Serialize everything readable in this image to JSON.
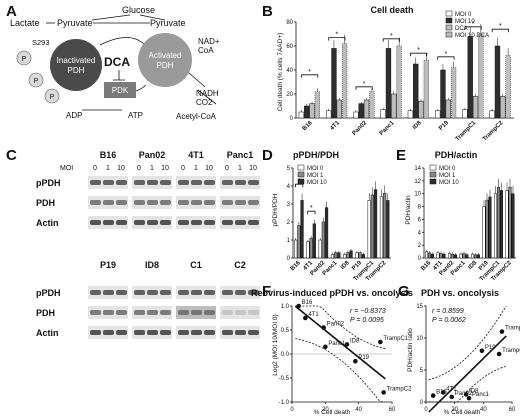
{
  "panels": {
    "A": {
      "letter": "A",
      "labels": {
        "glucose": "Glucose",
        "pyruvate_left": "Pyruvate",
        "pyruvate_right": "Pyruvate",
        "lactate": "Lactate",
        "inactivated": "Inactivated",
        "activated": "Activated",
        "pdh_left": "PDH",
        "pdh_right": "PDH",
        "dca": "DCA",
        "pdk": "PDK",
        "s293": "S293",
        "phospho": "P",
        "nad": "NAD+",
        "coa": "CoA",
        "nadh": "NADH",
        "co2": "CO2",
        "adp": "ADP",
        "atp": "ATP",
        "acetyl_coa": "Acetyl-CoA"
      }
    },
    "B": {
      "letter": "B",
      "chart_data": {
        "type": "bar",
        "title": "Cell death",
        "ylabel": "Cell death (% cells 7AAD+)",
        "ylim": [
          0,
          80
        ],
        "yticks": [
          0,
          20,
          40,
          60,
          80
        ],
        "categories": [
          "B16",
          "4T1",
          "Pan02",
          "Panc1",
          "ID8",
          "P19",
          "TrampC1",
          "TrampC2"
        ],
        "series": [
          {
            "name": "MOI 0",
            "values": [
              5,
              6,
              5,
              7,
              6,
              6,
              7,
              6
            ]
          },
          {
            "name": "MOI 10",
            "values": [
              10,
              58,
              12,
              58,
              45,
              40,
              68,
              60
            ]
          },
          {
            "name": "DCA",
            "values": [
              12,
              15,
              15,
              20,
              14,
              15,
              18,
              18
            ]
          },
          {
            "name": "MOI 10 DCA",
            "values": [
              22,
              62,
              22,
              60,
              48,
              42,
              70,
              52
            ]
          }
        ],
        "legend_position": "top-right",
        "significance_marker": "*"
      }
    },
    "C": {
      "letter": "C",
      "moi_label": "MOI",
      "moi_values": [
        "0",
        "1",
        "10"
      ],
      "blocks_top": [
        "B16",
        "Pan02",
        "4T1",
        "Panc1"
      ],
      "blocks_bottom": [
        "P19",
        "ID8",
        "C1",
        "C2"
      ],
      "row_labels": [
        "pPDH",
        "PDH",
        "Actin"
      ]
    },
    "D": {
      "letter": "D",
      "chart_data": {
        "type": "bar",
        "title": "pPDH/PDH",
        "ylabel": "pPDH/PDH",
        "ylim": [
          0,
          5
        ],
        "yticks": [
          0,
          1,
          2,
          3,
          4,
          5
        ],
        "categories": [
          "B16",
          "4T1",
          "Pan02",
          "Panc1",
          "ID8",
          "P19",
          "TrampC1",
          "TrampC2"
        ],
        "series": [
          {
            "name": "MOI 0",
            "values": [
              1.0,
              0.9,
              1.0,
              0.2,
              0.2,
              0.3,
              3.2,
              3.4
            ]
          },
          {
            "name": "MOI 1",
            "values": [
              1.8,
              1.1,
              2.0,
              0.3,
              0.3,
              0.3,
              3.5,
              3.6
            ]
          },
          {
            "name": "MOI 10",
            "values": [
              3.2,
              1.9,
              2.8,
              0.3,
              0.4,
              0.2,
              3.8,
              3.2
            ]
          }
        ],
        "legend_position": "top-left",
        "significance_marker": "*"
      }
    },
    "E": {
      "letter": "E",
      "chart_data": {
        "type": "bar",
        "title": "PDH/actin",
        "ylabel": "PDH/actin",
        "ylim": [
          0,
          14
        ],
        "yticks": [
          0,
          2,
          4,
          6,
          8,
          10,
          12,
          14
        ],
        "categories": [
          "B16",
          "4T1",
          "Pan02",
          "Panc1",
          "ID8",
          "P19",
          "TrampC1",
          "TrampC2"
        ],
        "series": [
          {
            "name": "MOI 0",
            "values": [
              1.0,
              0.8,
              0.7,
              0.6,
              0.6,
              8.0,
              10.0,
              10.5
            ]
          },
          {
            "name": "MOI 1",
            "values": [
              0.8,
              0.7,
              0.6,
              0.7,
              0.5,
              9.0,
              11.0,
              11.0
            ]
          },
          {
            "name": "MOI 10",
            "values": [
              0.6,
              0.6,
              0.5,
              0.5,
              0.5,
              9.5,
              10.5,
              10.0
            ]
          }
        ],
        "legend_position": "top-left"
      }
    },
    "F": {
      "letter": "F",
      "chart_data": {
        "type": "scatter",
        "title": "Reovirus-induced pPDH vs. oncolysis",
        "xlabel": "% Cell death",
        "ylabel": "Log2 (MOI 10/MOI 0)",
        "xlim": [
          0,
          60
        ],
        "ylim": [
          -1.0,
          1.0
        ],
        "xticks": [
          0,
          20,
          40,
          60
        ],
        "yticks": [
          -1.0,
          -0.5,
          0.0,
          0.5,
          1.0
        ],
        "annotation_r": "r = −0.8373",
        "annotation_p": "P = 0.0095",
        "points": [
          {
            "label": "B16",
            "x": 4,
            "y": 1.0
          },
          {
            "label": "4T1",
            "x": 8,
            "y": 0.75
          },
          {
            "label": "Pan02",
            "x": 19,
            "y": 0.55
          },
          {
            "label": "Panc1",
            "x": 20,
            "y": 0.15
          },
          {
            "label": "ID8",
            "x": 33,
            "y": 0.2
          },
          {
            "label": "P19",
            "x": 38,
            "y": -0.15
          },
          {
            "label": "TrampC1",
            "x": 53,
            "y": 0.25
          },
          {
            "label": "TrampC2",
            "x": 55,
            "y": -0.8
          }
        ]
      }
    },
    "G": {
      "letter": "G",
      "chart_data": {
        "type": "scatter",
        "title": "PDH vs. oncolysis",
        "xlabel": "% Cell death",
        "ylabel": "PDH/actin ratio",
        "xlim": [
          0,
          60
        ],
        "ylim": [
          0,
          15
        ],
        "xticks": [
          0,
          20,
          40,
          60
        ],
        "yticks": [
          0,
          5,
          10,
          15
        ],
        "annotation_r": "r = 0.8599",
        "annotation_p": "P = 0.0062",
        "points": [
          {
            "label": "B16",
            "x": 5,
            "y": 1.0
          },
          {
            "label": "4T1",
            "x": 12,
            "y": 1.5
          },
          {
            "label": "Pan02",
            "x": 18,
            "y": 0.8
          },
          {
            "label": "Panc1",
            "x": 30,
            "y": 0.6
          },
          {
            "label": "ID8",
            "x": 28,
            "y": 1.2
          },
          {
            "label": "P19",
            "x": 39,
            "y": 8.0
          },
          {
            "label": "TrampC1",
            "x": 53,
            "y": 11.0
          },
          {
            "label": "TrampC2",
            "x": 51,
            "y": 7.5
          }
        ]
      }
    }
  },
  "colors": {
    "moi0": "#ffffff",
    "moi1": "#8a8a8a",
    "moi10": "#2e2e2e",
    "dca": "#bdbdbd",
    "inactivated_pdh": "#4a4a4a",
    "activated_pdh": "#9a9a9a",
    "pdk_box": "#7a7a7a"
  }
}
